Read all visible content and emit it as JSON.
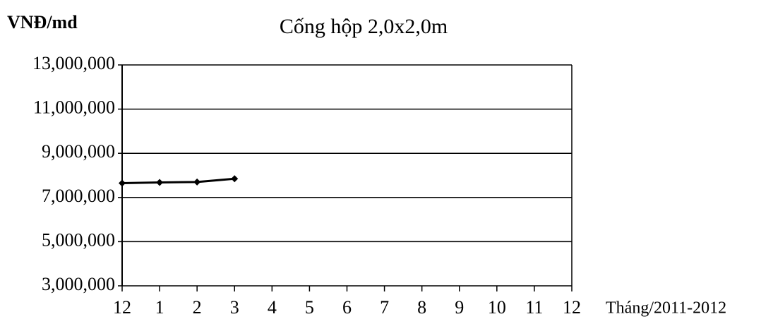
{
  "chart_data": {
    "type": "line",
    "title": "Cống hộp 2,0x2,0m",
    "y_axis_label": "VNĐ/md",
    "x_axis_label": "Tháng/2011-2012",
    "categories": [
      "12",
      "1",
      "2",
      "3",
      "4",
      "5",
      "6",
      "7",
      "8",
      "9",
      "10",
      "11",
      "12"
    ],
    "series": [
      {
        "name": "Cống hộp 2,0x2,0m",
        "color": "#000000",
        "values": [
          7650000,
          7680000,
          7700000,
          7850000,
          null,
          null,
          null,
          null,
          null,
          null,
          null,
          null,
          null
        ]
      }
    ],
    "ylim": [
      3000000,
      13000000
    ],
    "yticks": [
      {
        "value": 3000000,
        "label": "3,000,000"
      },
      {
        "value": 5000000,
        "label": "5,000,000"
      },
      {
        "value": 7000000,
        "label": "7,000,000"
      },
      {
        "value": 9000000,
        "label": "9,000,000"
      },
      {
        "value": 11000000,
        "label": "11,000,000"
      },
      {
        "value": 13000000,
        "label": "13,000,000"
      }
    ],
    "grid": true
  }
}
